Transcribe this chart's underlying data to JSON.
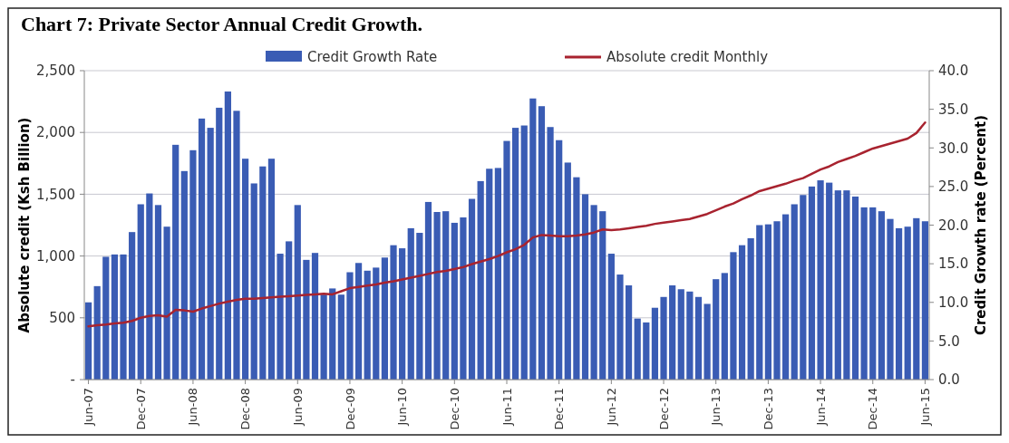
{
  "chart_data": {
    "type": "bar",
    "title": "Chart 7: Private Sector Annual Credit Growth.",
    "ylabel": "Absolute credit (Ksh Billion)",
    "y2label": "Credit Growth rate (Percent)",
    "categories": [
      "Jun-07",
      null,
      null,
      null,
      null,
      null,
      "Dec-07",
      null,
      null,
      null,
      null,
      null,
      "Jun-08",
      null,
      null,
      null,
      null,
      null,
      "Dec-08",
      null,
      null,
      null,
      null,
      null,
      "Jun-09",
      null,
      null,
      null,
      null,
      null,
      "Dec-09",
      null,
      null,
      null,
      null,
      null,
      "Jun-10",
      null,
      null,
      null,
      null,
      null,
      "Dec-10",
      null,
      null,
      null,
      null,
      null,
      "Jun-11",
      null,
      null,
      null,
      null,
      null,
      "Dec-11",
      null,
      null,
      null,
      null,
      null,
      "Jun-12",
      null,
      null,
      null,
      null,
      null,
      "Dec-12",
      null,
      null,
      null,
      null,
      null,
      "Jun-13",
      null,
      null,
      null,
      null,
      null,
      "Dec-13",
      null,
      null,
      null,
      null,
      null,
      "Jun-14",
      null,
      null,
      null,
      null,
      null,
      "Dec-14",
      null,
      null,
      null,
      null,
      null,
      "Jun-15"
    ],
    "series": [
      {
        "name": "Credit Growth Rate",
        "axis": "y2",
        "color": "#3a5cb4",
        "values": [
          10.0,
          12.1,
          15.9,
          16.2,
          16.2,
          19.1,
          22.7,
          24.1,
          22.6,
          19.8,
          30.4,
          27.0,
          29.7,
          33.8,
          32.6,
          35.2,
          37.3,
          34.8,
          28.6,
          25.4,
          27.6,
          28.6,
          16.3,
          17.9,
          22.6,
          15.5,
          16.4,
          11.0,
          11.8,
          11.0,
          13.9,
          15.1,
          14.1,
          14.5,
          15.8,
          17.4,
          17.0,
          19.6,
          19.0,
          23.0,
          21.7,
          21.8,
          20.3,
          21.0,
          23.4,
          25.7,
          27.3,
          27.4,
          30.9,
          32.6,
          32.9,
          36.4,
          35.4,
          32.7,
          31.0,
          28.1,
          26.2,
          24.0,
          22.6,
          21.8,
          16.3,
          13.6,
          12.2,
          7.9,
          7.4,
          9.3,
          10.7,
          12.2,
          11.7,
          11.4,
          10.7,
          9.8,
          13.0,
          13.8,
          16.5,
          17.4,
          18.3,
          20.0,
          20.1,
          20.5,
          21.4,
          22.7,
          23.9,
          25.0,
          25.8,
          25.5,
          24.5,
          24.5,
          23.7,
          22.3,
          22.3,
          21.8,
          20.8,
          19.6,
          19.8,
          20.9,
          20.5
        ]
      },
      {
        "name": "Absolute credit Monthly",
        "type": "line",
        "axis": "y",
        "color": "#a8232f",
        "values": [
          430,
          440,
          445,
          455,
          460,
          475,
          500,
          515,
          520,
          510,
          565,
          560,
          550,
          575,
          595,
          615,
          630,
          645,
          655,
          655,
          660,
          665,
          670,
          675,
          680,
          685,
          690,
          695,
          690,
          715,
          740,
          750,
          760,
          770,
          785,
          795,
          810,
          825,
          840,
          855,
          870,
          880,
          895,
          910,
          935,
          955,
          975,
          1000,
          1030,
          1055,
          1090,
          1150,
          1170,
          1165,
          1160,
          1160,
          1165,
          1175,
          1190,
          1215,
          1210,
          1215,
          1225,
          1235,
          1245,
          1260,
          1270,
          1280,
          1290,
          1300,
          1320,
          1340,
          1370,
          1400,
          1425,
          1460,
          1490,
          1525,
          1545,
          1565,
          1585,
          1610,
          1630,
          1665,
          1700,
          1725,
          1760,
          1785,
          1810,
          1840,
          1870,
          1890,
          1910,
          1930,
          1950,
          1995,
          2080
        ]
      }
    ],
    "ylim": [
      0,
      2500
    ],
    "yticks": [
      {
        "value": 0,
        "label": "-"
      },
      500,
      {
        "value": 1000,
        "label": "1,000"
      },
      {
        "value": 1500,
        "label": "1,500"
      },
      {
        "value": 2000,
        "label": "2,000"
      },
      {
        "value": 2500,
        "label": "2,500"
      }
    ],
    "y2lim": [
      0,
      40
    ],
    "y2ticks": [
      {
        "value": 0,
        "label": "0.0"
      },
      {
        "value": 5,
        "label": "5.0"
      },
      {
        "value": 10,
        "label": "10.0"
      },
      {
        "value": 15,
        "label": "15.0"
      },
      {
        "value": 20,
        "label": "20.0"
      },
      {
        "value": 25,
        "label": "25.0"
      },
      {
        "value": 30,
        "label": "30.0"
      },
      {
        "value": 35,
        "label": "35.0"
      },
      {
        "value": 40,
        "label": "40.0"
      }
    ],
    "grid": "y",
    "legend": "top"
  }
}
